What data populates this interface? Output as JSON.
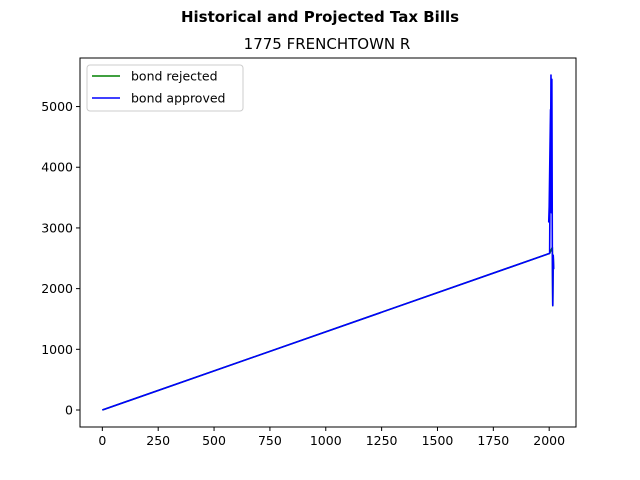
{
  "chart_data": {
    "type": "line",
    "suptitle": "Historical and Projected Tax Bills",
    "title": "1775 FRENCHTOWN R",
    "xlabel": "",
    "ylabel": "",
    "xlim": [
      -100,
      2120
    ],
    "ylim": [
      -280,
      5800
    ],
    "xticks": [
      0,
      250,
      500,
      750,
      1000,
      1250,
      1500,
      1750,
      2000
    ],
    "yticks": [
      0,
      1000,
      2000,
      3000,
      4000,
      5000
    ],
    "grid": false,
    "legend_position": "upper-left",
    "series": [
      {
        "name": "bond rejected",
        "color": "#008000",
        "points": [
          [
            0,
            0
          ],
          [
            2002,
            2580
          ],
          [
            2014,
            2680
          ],
          [
            2016,
            1720
          ],
          [
            2018,
            2550
          ],
          [
            2020,
            2320
          ]
        ]
      },
      {
        "name": "bond approved",
        "color": "#0000ff",
        "points": [
          [
            0,
            0
          ],
          [
            2002,
            2580
          ],
          [
            2004,
            3850
          ],
          [
            2006,
            4950
          ],
          [
            2000,
            3350
          ],
          [
            1998,
            3100
          ],
          [
            2006,
            4100
          ],
          [
            2008,
            5520
          ],
          [
            2010,
            3250
          ],
          [
            2012,
            5450
          ],
          [
            2014,
            2680
          ],
          [
            2016,
            1720
          ],
          [
            2018,
            2550
          ],
          [
            2020,
            2320
          ]
        ]
      }
    ]
  }
}
